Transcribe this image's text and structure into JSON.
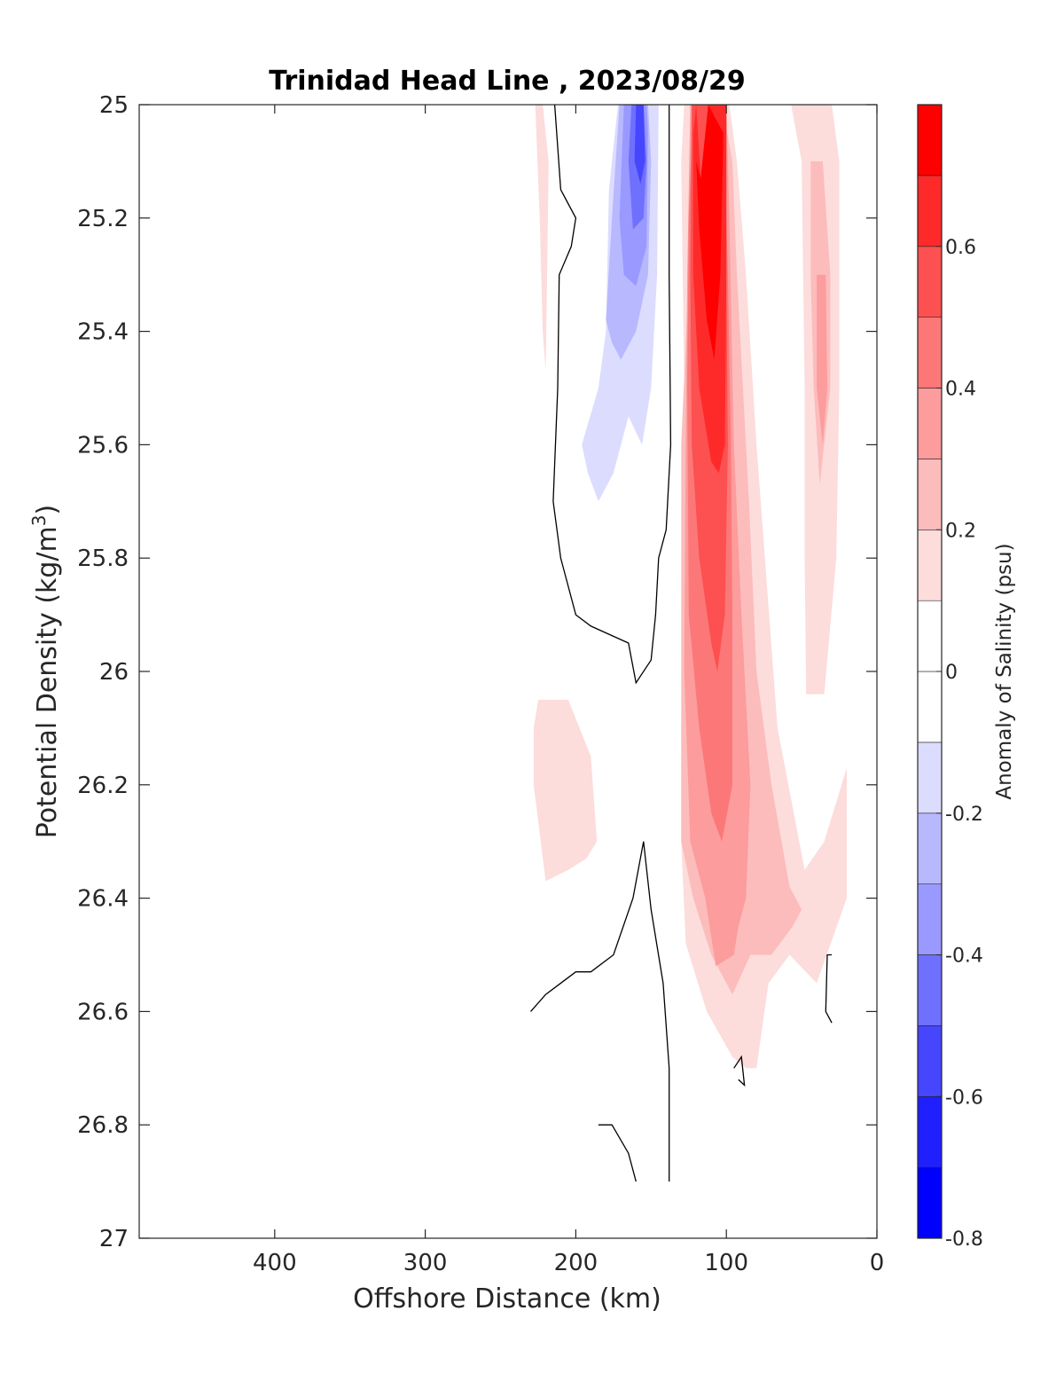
{
  "chart_data": {
    "type": "heatmap",
    "title": "Trinidad Head Line , 2023/08/29",
    "xlabel": "Offshore Distance (km)",
    "ylabel_main": "Potential Density (kg/m",
    "ylabel_sup": "3",
    "ylabel_close": ")",
    "xlim": [
      490,
      0
    ],
    "ylim": [
      25,
      27
    ],
    "x_reversed": true,
    "y_reversed": true,
    "xticks": [
      400,
      300,
      200,
      100,
      0
    ],
    "xtick_labels": [
      "400",
      "300",
      "200",
      "100",
      "0"
    ],
    "yticks": [
      25,
      25.2,
      25.4,
      25.6,
      25.8,
      26,
      26.2,
      26.4,
      26.6,
      26.8,
      27
    ],
    "ytick_labels": [
      "25",
      "25.2",
      "25.4",
      "25.6",
      "25.8",
      "26",
      "26.2",
      "26.4",
      "26.6",
      "26.8",
      "27"
    ],
    "colorbar": {
      "label": "Anomaly of Salinity (psu)",
      "range": [
        -0.8,
        0.8
      ],
      "levels": [
        -0.8,
        -0.7,
        -0.6,
        -0.5,
        -0.4,
        -0.3,
        -0.2,
        -0.1,
        0,
        0.1,
        0.2,
        0.3,
        0.4,
        0.5,
        0.6,
        0.7,
        0.8
      ],
      "tick_values": [
        -0.8,
        -0.6,
        -0.4,
        -0.2,
        0,
        0.2,
        0.4,
        0.6
      ],
      "tick_labels": [
        "-0.8",
        "-0.6",
        "-0.4",
        "-0.2",
        "0",
        "0.2",
        "0.4",
        "0.6"
      ],
      "colors": [
        "#0000ff",
        "#2020ff",
        "#4646ff",
        "#7070ff",
        "#9999ff",
        "#b8b8ff",
        "#dcdcff",
        "#ffffff",
        "#ffffff",
        "#fddcdc",
        "#fcbcbc",
        "#fc9c9c",
        "#fc7878",
        "#fd5050",
        "#fe2a2a",
        "#ff0000"
      ]
    },
    "regions": [
      {
        "level": 0.15,
        "points": [
          [
            227,
            25
          ],
          [
            222,
            25
          ],
          [
            218,
            25.1
          ],
          [
            219,
            25.3
          ],
          [
            220,
            25.47
          ],
          [
            222,
            25.4
          ],
          [
            224,
            25.2
          ]
        ]
      },
      {
        "level": 0.15,
        "points": [
          [
            108,
            25
          ],
          [
            98,
            25
          ],
          [
            93,
            25.1
          ],
          [
            87,
            25.3
          ],
          [
            80,
            25.6
          ],
          [
            66,
            26.1
          ],
          [
            48,
            26.35
          ],
          [
            35,
            26.3
          ],
          [
            20,
            26.17
          ],
          [
            20,
            26.4
          ],
          [
            40,
            26.55
          ],
          [
            58,
            26.5
          ],
          [
            72,
            26.55
          ],
          [
            80,
            26.7
          ],
          [
            87,
            26.7
          ],
          [
            96,
            26.68
          ],
          [
            113,
            26.6
          ],
          [
            127,
            26.48
          ],
          [
            130,
            26.3
          ],
          [
            130,
            26.1
          ],
          [
            128,
            25.9
          ],
          [
            128,
            25.5
          ],
          [
            130,
            25.1
          ],
          [
            128,
            25
          ],
          [
            120,
            25
          ],
          [
            118,
            25.2
          ],
          [
            112,
            25.05
          ]
        ]
      },
      {
        "level": 0.15,
        "points": [
          [
            57,
            25
          ],
          [
            50,
            25.1
          ],
          [
            48,
            25.5
          ],
          [
            48,
            25.8
          ],
          [
            47,
            26.04
          ],
          [
            35,
            26.04
          ],
          [
            27,
            25.8
          ],
          [
            25,
            25.5
          ],
          [
            25,
            25.1
          ],
          [
            30,
            25
          ],
          [
            50,
            25
          ]
        ]
      },
      {
        "level": 0.15,
        "points": [
          [
            225,
            26.05
          ],
          [
            205,
            26.05
          ],
          [
            190,
            26.15
          ],
          [
            186,
            26.3
          ],
          [
            193,
            26.33
          ],
          [
            205,
            26.35
          ],
          [
            220,
            26.37
          ],
          [
            228,
            26.2
          ],
          [
            228,
            26.1
          ]
        ]
      },
      {
        "level": 0.25,
        "points": [
          [
            103,
            25
          ],
          [
            96,
            25.1
          ],
          [
            93,
            25.3
          ],
          [
            85,
            25.7
          ],
          [
            80,
            26
          ],
          [
            70,
            26.2
          ],
          [
            58,
            26.38
          ],
          [
            50,
            26.42
          ],
          [
            56,
            26.45
          ],
          [
            70,
            26.5
          ],
          [
            84,
            26.5
          ],
          [
            96,
            26.57
          ],
          [
            110,
            26.5
          ],
          [
            122,
            26.4
          ],
          [
            130,
            26.3
          ],
          [
            130,
            25.6
          ],
          [
            125,
            25.3
          ],
          [
            122,
            25
          ],
          [
            115,
            25
          ]
        ]
      },
      {
        "level": 0.25,
        "points": [
          [
            44,
            25.1
          ],
          [
            36,
            25.1
          ],
          [
            31,
            25.3
          ],
          [
            31,
            25.5
          ],
          [
            38,
            25.67
          ],
          [
            42,
            25.5
          ],
          [
            44,
            25.3
          ]
        ]
      },
      {
        "level": 0.35,
        "points": [
          [
            100,
            25
          ],
          [
            98,
            25.2
          ],
          [
            95,
            25.6
          ],
          [
            90,
            25.9
          ],
          [
            84,
            26.2
          ],
          [
            87,
            26.4
          ],
          [
            92,
            26.45
          ],
          [
            95,
            26.5
          ],
          [
            107,
            26.52
          ],
          [
            114,
            26.4
          ],
          [
            124,
            26.3
          ],
          [
            128,
            26
          ],
          [
            127,
            25.6
          ],
          [
            126,
            25.3
          ],
          [
            124,
            25
          ],
          [
            110,
            25
          ]
        ]
      },
      {
        "level": 0.35,
        "points": [
          [
            40,
            25.3
          ],
          [
            34,
            25.3
          ],
          [
            33,
            25.5
          ],
          [
            36,
            25.6
          ],
          [
            40,
            25.5
          ]
        ]
      },
      {
        "level": 0.45,
        "points": [
          [
            102,
            25
          ],
          [
            99,
            25.3
          ],
          [
            97,
            25.6
          ],
          [
            96,
            25.9
          ],
          [
            96,
            26.2
          ],
          [
            103,
            26.3
          ],
          [
            110,
            26.25
          ],
          [
            118,
            26.1
          ],
          [
            125,
            25.9
          ],
          [
            126,
            25.5
          ],
          [
            125,
            25.2
          ],
          [
            122,
            25
          ],
          [
            112,
            25
          ]
        ]
      },
      {
        "level": 0.55,
        "points": [
          [
            101,
            25
          ],
          [
            100,
            25.3
          ],
          [
            99,
            25.6
          ],
          [
            101,
            25.9
          ],
          [
            106,
            26
          ],
          [
            110,
            25.95
          ],
          [
            118,
            25.8
          ],
          [
            123,
            25.6
          ],
          [
            124,
            25.3
          ],
          [
            123,
            25
          ],
          [
            112,
            25
          ]
        ]
      },
      {
        "level": 0.65,
        "points": [
          [
            100,
            25
          ],
          [
            100,
            25.3
          ],
          [
            101,
            25.6
          ],
          [
            105,
            25.65
          ],
          [
            110,
            25.63
          ],
          [
            118,
            25.5
          ],
          [
            122,
            25.3
          ],
          [
            122,
            25.05
          ],
          [
            120,
            25
          ],
          [
            117,
            25.13
          ],
          [
            112,
            25
          ]
        ]
      },
      {
        "level": 0.75,
        "points": [
          [
            102,
            25.05
          ],
          [
            104,
            25.3
          ],
          [
            108,
            25.45
          ],
          [
            113,
            25.38
          ],
          [
            118,
            25.22
          ],
          [
            120,
            25.1
          ],
          [
            117,
            25.13
          ],
          [
            112,
            25
          ]
        ]
      },
      {
        "level": -0.15,
        "points": [
          [
            172,
            25
          ],
          [
            178,
            25.15
          ],
          [
            180,
            25.4
          ],
          [
            185,
            25.5
          ],
          [
            196,
            25.6
          ],
          [
            192,
            25.65
          ],
          [
            185,
            25.7
          ],
          [
            175,
            25.65
          ],
          [
            165,
            25.55
          ],
          [
            156,
            25.6
          ],
          [
            150,
            25.5
          ],
          [
            146,
            25.3
          ],
          [
            145,
            25
          ],
          [
            160,
            25
          ]
        ]
      },
      {
        "level": -0.25,
        "points": [
          [
            171,
            25
          ],
          [
            176,
            25.2
          ],
          [
            180,
            25.38
          ],
          [
            176,
            25.42
          ],
          [
            170,
            25.45
          ],
          [
            160,
            25.4
          ],
          [
            152,
            25.3
          ],
          [
            150,
            25.1
          ],
          [
            152,
            25
          ],
          [
            162,
            25
          ]
        ]
      },
      {
        "level": -0.35,
        "points": [
          [
            168,
            25
          ],
          [
            171,
            25.2
          ],
          [
            168,
            25.3
          ],
          [
            160,
            25.32
          ],
          [
            153,
            25.25
          ],
          [
            152,
            25.05
          ],
          [
            153,
            25
          ],
          [
            160,
            25
          ]
        ]
      },
      {
        "level": -0.45,
        "points": [
          [
            163,
            25
          ],
          [
            165,
            25.1
          ],
          [
            162,
            25.22
          ],
          [
            155,
            25.2
          ],
          [
            153,
            25.1
          ],
          [
            155,
            25
          ]
        ]
      },
      {
        "level": -0.55,
        "points": [
          [
            160,
            25
          ],
          [
            161,
            25.1
          ],
          [
            157,
            25.14
          ],
          [
            154,
            25.1
          ],
          [
            155,
            25
          ]
        ]
      }
    ],
    "zero_contours": [
      [
        [
          214,
          25
        ],
        [
          210,
          25.15
        ],
        [
          200,
          25.2
        ],
        [
          203,
          25.25
        ],
        [
          211,
          25.3
        ],
        [
          212,
          25.5
        ],
        [
          215,
          25.7
        ],
        [
          210,
          25.8
        ],
        [
          200,
          25.9
        ],
        [
          190,
          25.92
        ],
        [
          165,
          25.95
        ],
        [
          160,
          26.02
        ],
        [
          150,
          25.98
        ],
        [
          147,
          25.9
        ],
        [
          145,
          25.8
        ],
        [
          140,
          25.75
        ],
        [
          137,
          25.6
        ],
        [
          138,
          25.3
        ],
        [
          138,
          25.1
        ],
        [
          138,
          25
        ]
      ],
      [
        [
          230,
          26.6
        ],
        [
          220,
          26.57
        ],
        [
          200,
          26.53
        ],
        [
          190,
          26.53
        ],
        [
          175,
          26.5
        ],
        [
          162,
          26.4
        ],
        [
          155,
          26.3
        ],
        [
          150,
          26.42
        ],
        [
          142,
          26.55
        ],
        [
          138,
          26.7
        ],
        [
          138,
          26.9
        ]
      ],
      [
        [
          185,
          26.8
        ],
        [
          176,
          26.8
        ],
        [
          165,
          26.85
        ],
        [
          160,
          26.9
        ]
      ],
      [
        [
          95,
          26.7
        ],
        [
          90,
          26.68
        ],
        [
          88,
          26.73
        ],
        [
          92,
          26.72
        ]
      ],
      [
        [
          30,
          26.5
        ],
        [
          33,
          26.5
        ],
        [
          34,
          26.6
        ],
        [
          30,
          26.62
        ]
      ]
    ]
  }
}
